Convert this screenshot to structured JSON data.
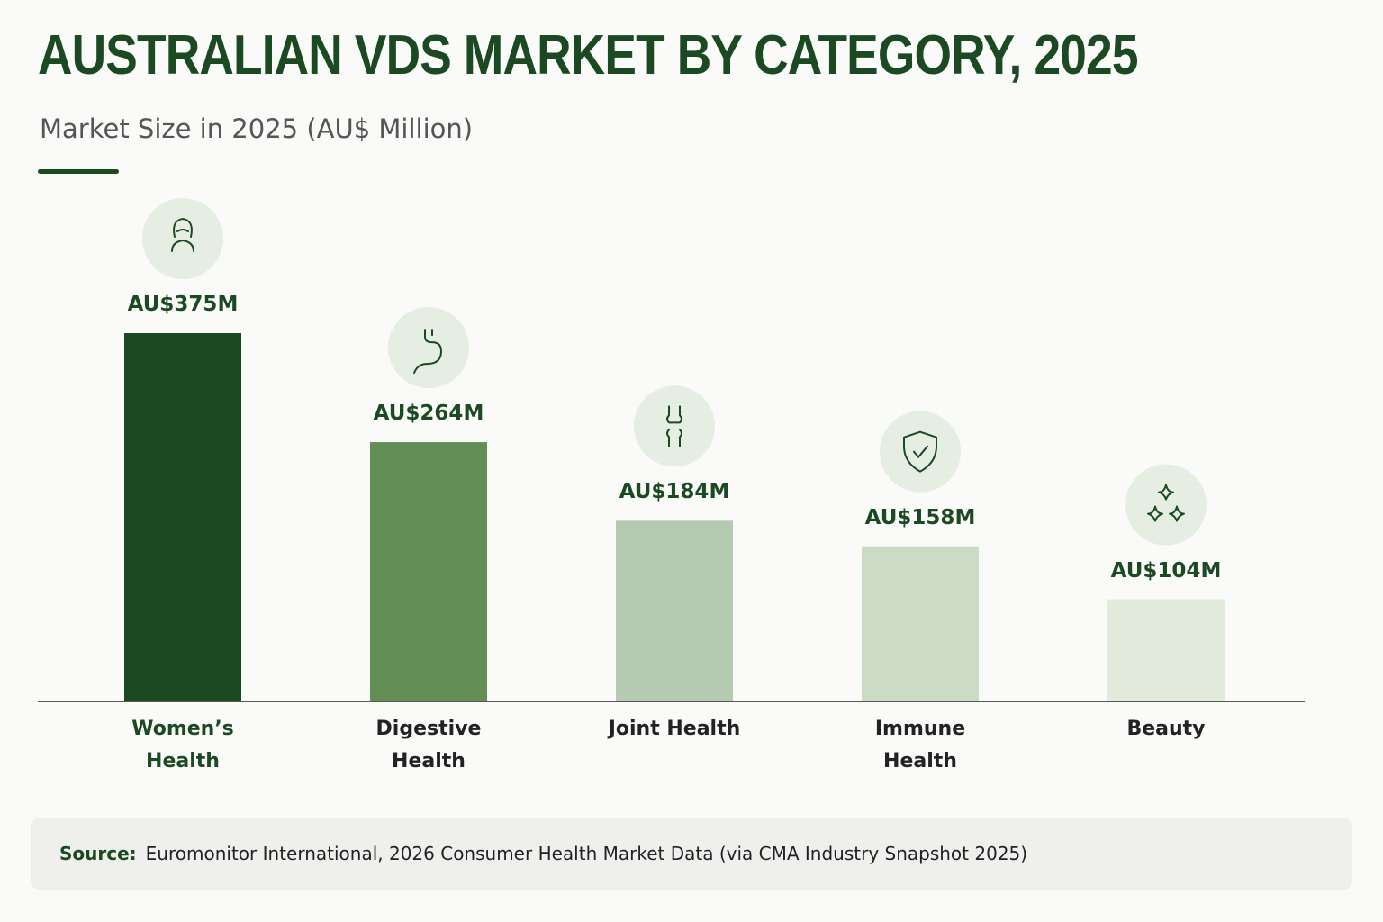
{
  "chart_data": {
    "type": "bar",
    "title": "AUSTRALIAN VDS MARKET BY CATEGORY, 2025",
    "subtitle": "Market Size in 2025 (AU$ Million)",
    "categories": [
      "Women’s Health",
      "Digestive Health",
      "Joint Health",
      "Immune Health",
      "Beauty"
    ],
    "values": [
      375,
      264,
      184,
      158,
      104
    ],
    "value_labels": [
      "AU$375M",
      "AU$264M",
      "AU$184M",
      "AU$158M",
      "AU$104M"
    ],
    "colors": [
      "#1b4a22",
      "#638f56",
      "#b5cab0",
      "#cbdbc5",
      "#e3ebdd"
    ],
    "source_label": "Source:",
    "source": "Euromonitor International, 2026 Consumer Health Market Data (via CMA Industry Snapshot 2025)"
  }
}
